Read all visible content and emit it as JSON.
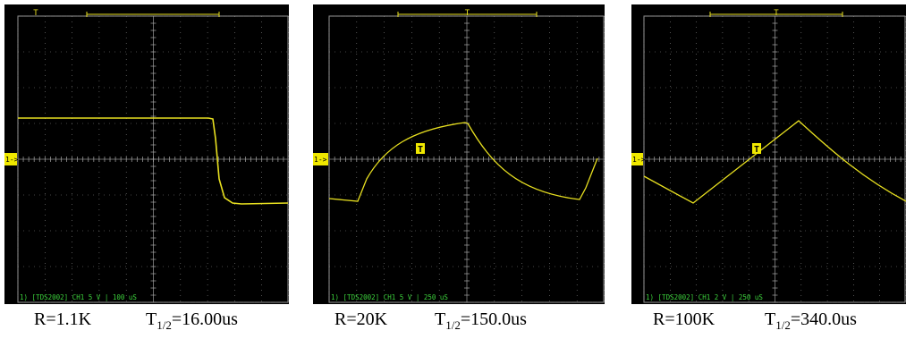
{
  "markers": {
    "channel": "1->",
    "trigger": "T"
  },
  "panels": [
    {
      "screen_label": "1) [TDS2002] CH1 5 V | 100 uS",
      "caption": {
        "r": "R=1.1K",
        "t": "T",
        "t_sub": "1/2",
        "t_value": "=16.00us"
      }
    },
    {
      "screen_label": "1) [TDS2002] CH1 5 V | 250 uS",
      "caption": {
        "r": "R=20K",
        "t": "T",
        "t_sub": "1/2",
        "t_value": "=150.0us"
      }
    },
    {
      "screen_label": "1) [TDS2002] CH1 2 V | 250 uS",
      "caption": {
        "r": "R=100K",
        "t": "T",
        "t_sub": "1/2",
        "t_value": "=340.0us"
      }
    }
  ]
}
